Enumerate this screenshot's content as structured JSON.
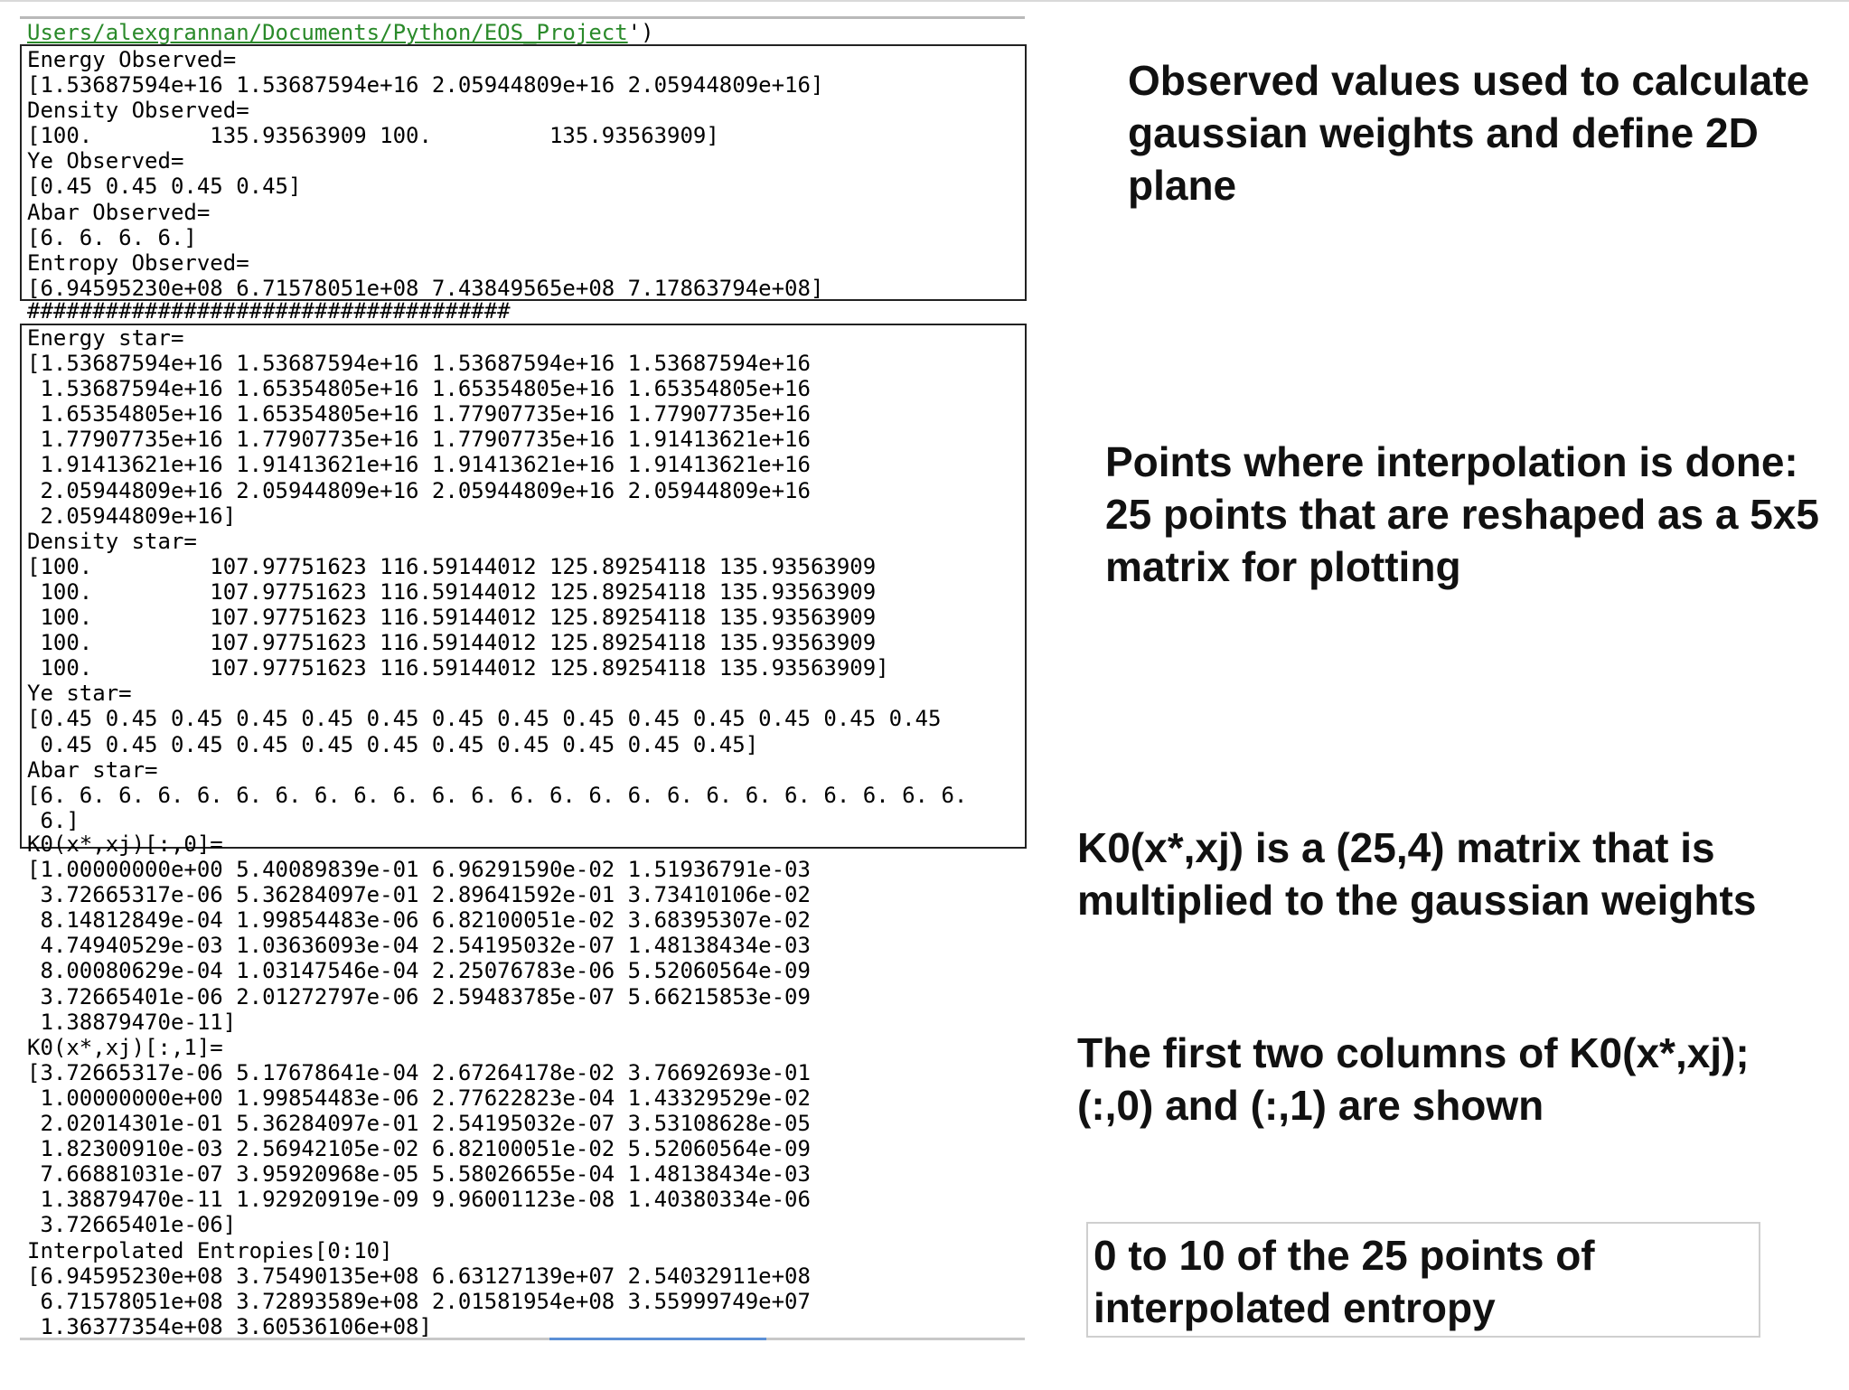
{
  "console": {
    "path_underlined": "Users/alexgrannan/Documents/Python/EOS_Project",
    "path_tail": "')",
    "observed_block": "Energy Observed=\n[1.53687594e+16 1.53687594e+16 2.05944809e+16 2.05944809e+16]\nDensity Observed=\n[100.         135.93563909 100.         135.93563909]\nYe Observed=\n[0.45 0.45 0.45 0.45]\nAbar Observed=\n[6. 6. 6. 6.]\nEntropy Observed=\n[6.94595230e+08 6.71578051e+08 7.43849565e+08 7.17863794e+08]",
    "separator": "#####################################",
    "star_block": "Energy star=\n[1.53687594e+16 1.53687594e+16 1.53687594e+16 1.53687594e+16\n 1.53687594e+16 1.65354805e+16 1.65354805e+16 1.65354805e+16\n 1.65354805e+16 1.65354805e+16 1.77907735e+16 1.77907735e+16\n 1.77907735e+16 1.77907735e+16 1.77907735e+16 1.91413621e+16\n 1.91413621e+16 1.91413621e+16 1.91413621e+16 1.91413621e+16\n 2.05944809e+16 2.05944809e+16 2.05944809e+16 2.05944809e+16\n 2.05944809e+16]\nDensity star=\n[100.         107.97751623 116.59144012 125.89254118 135.93563909\n 100.         107.97751623 116.59144012 125.89254118 135.93563909\n 100.         107.97751623 116.59144012 125.89254118 135.93563909\n 100.         107.97751623 116.59144012 125.89254118 135.93563909\n 100.         107.97751623 116.59144012 125.89254118 135.93563909]\nYe star=\n[0.45 0.45 0.45 0.45 0.45 0.45 0.45 0.45 0.45 0.45 0.45 0.45 0.45 0.45\n 0.45 0.45 0.45 0.45 0.45 0.45 0.45 0.45 0.45 0.45 0.45]\nAbar star=\n[6. 6. 6. 6. 6. 6. 6. 6. 6. 6. 6. 6. 6. 6. 6. 6. 6. 6. 6. 6. 6. 6. 6. 6.\n 6.]",
    "k0_block": "K0(x*,xj)[:,0]=\n[1.00000000e+00 5.40089839e-01 6.96291590e-02 1.51936791e-03\n 3.72665317e-06 5.36284097e-01 2.89641592e-01 3.73410106e-02\n 8.14812849e-04 1.99854483e-06 6.82100051e-02 3.68395307e-02\n 4.74940529e-03 1.03636093e-04 2.54195032e-07 1.48138434e-03\n 8.00080629e-04 1.03147546e-04 2.25076783e-06 5.52060564e-09\n 3.72665401e-06 2.01272797e-06 2.59483785e-07 5.66215853e-09\n 1.38879470e-11]\nK0(x*,xj)[:,1]=\n[3.72665317e-06 5.17678641e-04 2.67264178e-02 3.76692693e-01\n 1.00000000e+00 1.99854483e-06 2.77622823e-04 1.43329529e-02\n 2.02014301e-01 5.36284097e-01 2.54195032e-07 3.53108628e-05\n 1.82300910e-03 2.56942105e-02 6.82100051e-02 5.52060564e-09\n 7.66881031e-07 3.95920968e-05 5.58026655e-04 1.48138434e-03\n 1.38879470e-11 1.92920919e-09 9.96001123e-08 1.40380334e-06\n 3.72665401e-06]\nInterpolated Entropies[0:10]\n[6.94595230e+08 3.75490135e+08 6.63127139e+07 2.54032911e+08\n 6.71578051e+08 3.72893589e+08 2.01581954e+08 3.55999749e+07\n 1.36377354e+08 3.60536106e+08]"
  },
  "annotations": {
    "observed": "Observed values used to calculate gaussian weights and define 2D plane",
    "interpolation_points": "Points where interpolation is done: 25 points that are reshaped as a 5x5 matrix for plotting",
    "k0_matrix": "K0(x*,xj) is a (25,4) matrix that is multiplied to the gaussian weights",
    "k0_columns": "The first two columns of K0(x*,xj); (:,0) and (:,1) are shown",
    "entropy": "0 to 10 of the 25 points of interpolated entropy"
  }
}
